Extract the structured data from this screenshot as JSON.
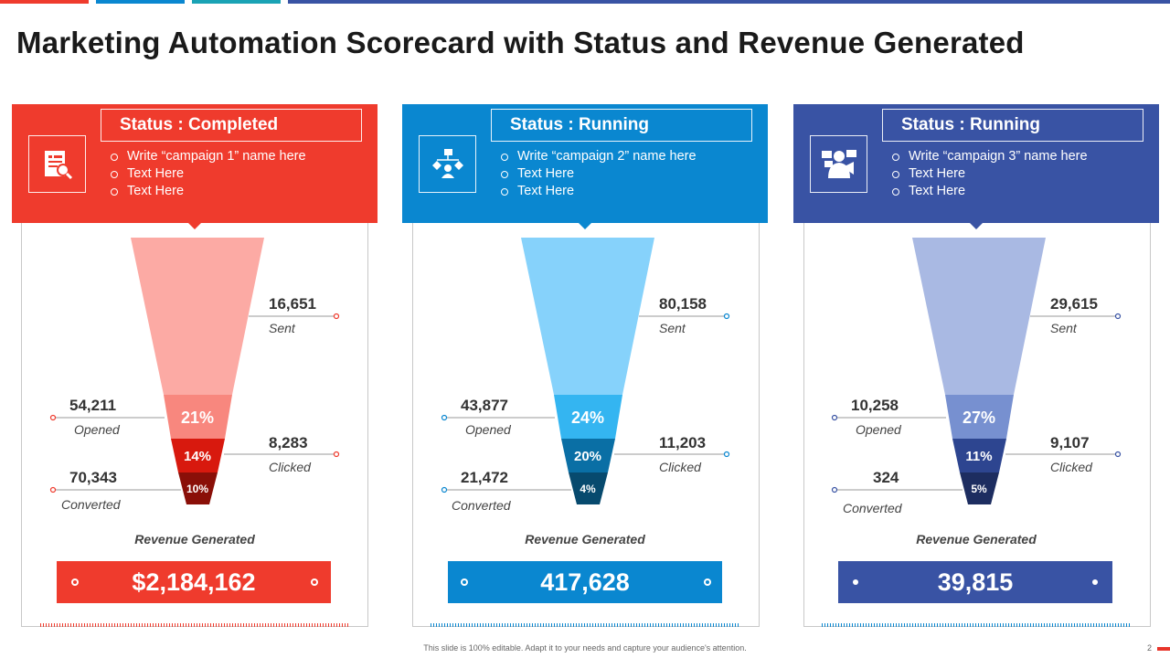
{
  "title": "Marketing Automation Scorecard with Status and Revenue Generated",
  "footer": "This slide is 100% editable. Adapt it to your needs and capture your audience's attention.",
  "page_number": "2",
  "colors": {
    "red": "#ef3b2d",
    "blue": "#0a87d0",
    "navy": "#3953a4"
  },
  "revenue_label": "Revenue Generated",
  "campaigns": [
    {
      "status": "Status : Completed",
      "icon": "presentation-report-icon",
      "bullets": [
        "Write “campaign 1” name here",
        "Text Here",
        "Text Here"
      ],
      "sent": {
        "value": "16,651",
        "label": "Sent"
      },
      "opened": {
        "value": "54,211",
        "label": "Opened"
      },
      "clicked": {
        "value": "8,283",
        "label": "Clicked"
      },
      "converted": {
        "value": "70,343",
        "label": "Converted"
      },
      "pct_opened": "21%",
      "pct_clicked": "14%",
      "pct_converted": "10%",
      "revenue": "$2,184,162"
    },
    {
      "status": "Status : Running",
      "icon": "workflow-network-icon",
      "bullets": [
        "Write “campaign 2” name here",
        "Text Here",
        "Text Here"
      ],
      "sent": {
        "value": "80,158",
        "label": "Sent"
      },
      "opened": {
        "value": "43,877",
        "label": "Opened"
      },
      "clicked": {
        "value": "11,203",
        "label": "Clicked"
      },
      "converted": {
        "value": "21,472",
        "label": "Converted"
      },
      "pct_opened": "24%",
      "pct_clicked": "20%",
      "pct_converted": "4%",
      "revenue": "417,628"
    },
    {
      "status": "Status : Running",
      "icon": "speaker-megaphone-icon",
      "bullets": [
        "Write “campaign 3” name here",
        "Text Here",
        "Text Here"
      ],
      "sent": {
        "value": "29,615",
        "label": "Sent"
      },
      "opened": {
        "value": "10,258",
        "label": "Opened"
      },
      "clicked": {
        "value": "9,107",
        "label": "Clicked"
      },
      "converted": {
        "value": "324",
        "label": "Converted"
      },
      "pct_opened": "27%",
      "pct_clicked": "11%",
      "pct_converted": "5%",
      "revenue": "39,815"
    }
  ]
}
